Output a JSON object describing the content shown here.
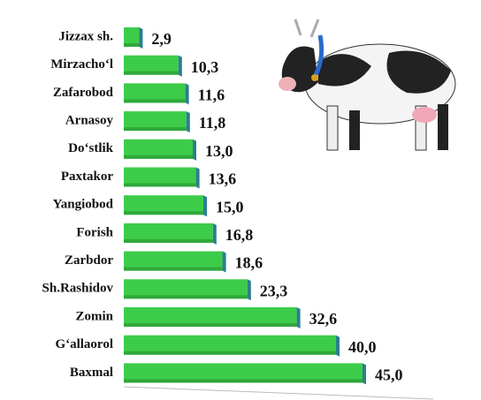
{
  "chart_data": {
    "type": "bar",
    "orientation": "horizontal",
    "categories": [
      "Jizzax sh.",
      "Mirzacho‘l",
      "Zafarobod",
      "Arnasoy",
      "Do‘stlik",
      "Paxtakor",
      "Yangiobod",
      "Forish",
      "Zarbdor",
      "Sh.Rashidov",
      "Zomin",
      "G‘allaorol",
      "Baxmal"
    ],
    "values": [
      2.9,
      10.3,
      11.6,
      11.8,
      13.0,
      13.6,
      15.0,
      16.8,
      18.6,
      23.3,
      32.6,
      40.0,
      45.0
    ],
    "value_labels": [
      "2,9",
      "10,3",
      "11,6",
      "11,8",
      "13,0",
      "13,6",
      "15,0",
      "16,8",
      "18,6",
      "23,3",
      "32,6",
      "40,0",
      "45,0"
    ],
    "color": "#3dcc4a",
    "xlim": [
      0,
      50
    ]
  }
}
